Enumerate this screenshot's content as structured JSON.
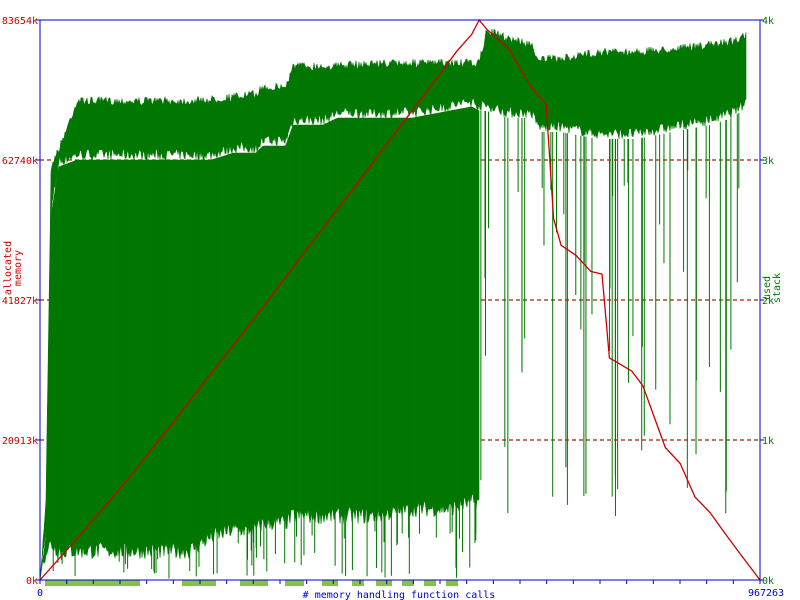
{
  "colors": {
    "memory": "#cc0000",
    "stack": "#007700",
    "axis": "#0000cc",
    "calls": "#88c04a",
    "grid_stack": "#7a4400",
    "background": "#ffffff"
  },
  "chart_data": {
    "type": "line",
    "xlabel": "# memory handling function calls",
    "ylabel_left": "allocated\nmemory",
    "ylabel_right": "used\nstack",
    "x_ticks": [
      "0",
      "967263"
    ],
    "xlim": [
      0,
      967263
    ],
    "ylim_left": [
      0,
      83654
    ],
    "ylim_right": [
      0,
      4000
    ],
    "left_ticks": [
      {
        "value": 0,
        "label": "0k"
      },
      {
        "value": 20913,
        "label": "20913k"
      },
      {
        "value": 41827,
        "label": "41827k"
      },
      {
        "value": 62740,
        "label": "62740k"
      },
      {
        "value": 83654,
        "label": "83654k"
      }
    ],
    "right_ticks": [
      {
        "value": 0,
        "label": "0k"
      },
      {
        "value": 1000,
        "label": "1k"
      },
      {
        "value": 2000,
        "label": "2k"
      },
      {
        "value": 3000,
        "label": "3k"
      },
      {
        "value": 4000,
        "label": "4k"
      }
    ],
    "series": [
      {
        "name": "allocated memory",
        "axis": "left",
        "x": [
          0,
          20000,
          60000,
          120000,
          180000,
          240000,
          300000,
          350000,
          420000,
          480000,
          530000,
          560000,
          580000,
          590000,
          600000,
          630000,
          660000,
          680000,
          690000,
          700000,
          720000,
          740000,
          755000,
          765000,
          795000,
          810000,
          840000,
          860000,
          880000,
          900000,
          920000,
          940000,
          967263
        ],
        "y": [
          0,
          2500,
          7500,
          15300,
          23700,
          32300,
          40800,
          48200,
          58300,
          67200,
          74500,
          79000,
          81500,
          83654,
          82300,
          79300,
          73600,
          71000,
          54000,
          50000,
          48500,
          46100,
          45700,
          33200,
          31200,
          29000,
          19800,
          17400,
          12400,
          10100,
          7000,
          4000,
          0
        ]
      },
      {
        "name": "used stack",
        "axis": "right",
        "x": [
          0,
          8000,
          15000,
          25000,
          50000,
          100000,
          150000,
          200000,
          230000,
          260000,
          290000,
          300000,
          330000,
          340000,
          380000,
          400000,
          450000,
          500000,
          550000,
          580000,
          590000,
          600000,
          630000,
          660000,
          670000,
          700000,
          750000,
          800000,
          850000,
          900000,
          930000,
          967263
        ],
        "y_top": [
          0,
          600,
          3000,
          3100,
          3450,
          3450,
          3450,
          3450,
          3460,
          3480,
          3500,
          3550,
          3550,
          3700,
          3700,
          3700,
          3720,
          3720,
          3720,
          3720,
          3720,
          3950,
          3900,
          3850,
          3750,
          3750,
          3800,
          3800,
          3820,
          3850,
          3880,
          3950
        ],
        "y_bottom": [
          0,
          300,
          2600,
          2950,
          3000,
          3000,
          3000,
          3000,
          3000,
          3050,
          3050,
          3100,
          3100,
          3250,
          3250,
          3300,
          3300,
          3300,
          3350,
          3380,
          3350,
          3350,
          3300,
          3300,
          3200,
          3200,
          3150,
          3150,
          3200,
          3250,
          3300,
          3450
        ],
        "y_min_low": [
          0,
          150,
          200,
          150,
          150,
          150,
          150,
          150,
          250,
          300,
          300,
          350,
          350,
          400,
          400,
          400,
          400,
          450,
          450,
          500,
          500,
          3200,
          3150,
          3100,
          3100,
          3100,
          3100,
          3100,
          3100,
          3150,
          3200,
          3300
        ]
      }
    ],
    "calls_band": true
  }
}
